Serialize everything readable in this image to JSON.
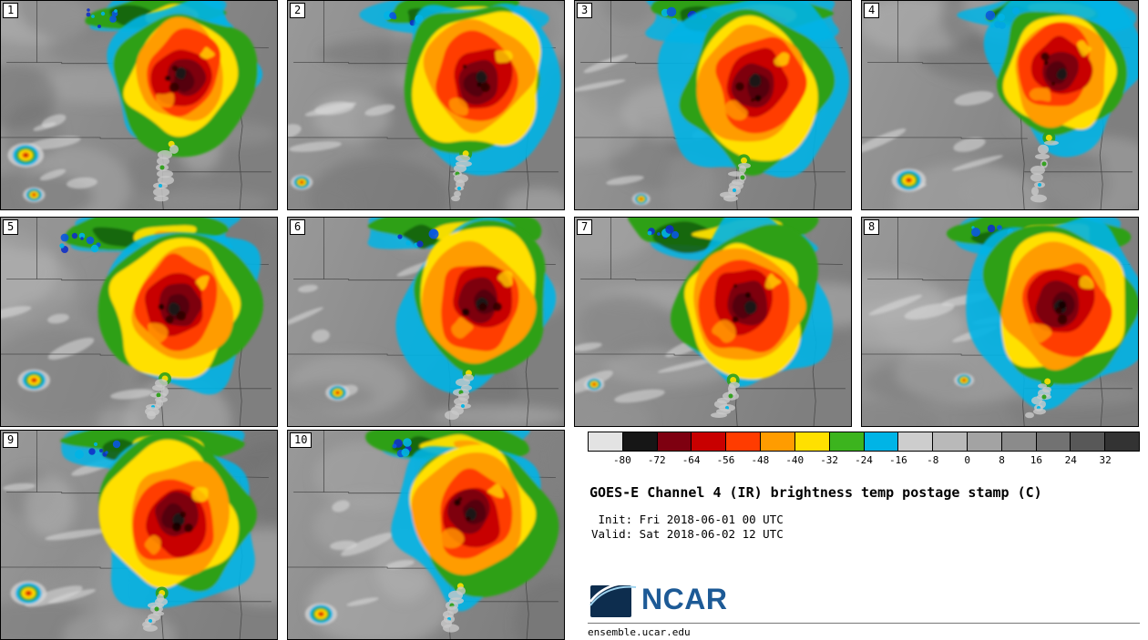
{
  "title": "GOES-E Channel 4 (IR) brightness temp postage stamp (C)",
  "init_line": " Init: Fri 2018-06-01 00 UTC",
  "valid_line": "Valid: Sat 2018-06-02 12 UTC",
  "branding": {
    "wordmark": "NCAR",
    "url": "ensemble.ucar.edu",
    "color": "#1d5a96",
    "icon_bg": "#0d2d4e",
    "icon_swoosh": "#9fd4f0"
  },
  "colorbar": {
    "ticks": [
      "-80",
      "-72",
      "-64",
      "-56",
      "-48",
      "-40",
      "-32",
      "-24",
      "-16",
      "-8",
      "0",
      "8",
      "16",
      "24",
      "32"
    ],
    "segments": [
      "#e3e3e3",
      "#161616",
      "#7e0010",
      "#c80000",
      "#ff3c00",
      "#ff9c00",
      "#ffe000",
      "#3cb41e",
      "#00b4e6",
      "#cdcdcd",
      "#b9b9b9",
      "#a3a3a3",
      "#8b8b8b",
      "#727272",
      "#585858",
      "#333333"
    ]
  },
  "panels": [
    {
      "label": "1",
      "storm": [
        0.66,
        0.36,
        0.235
      ],
      "band": [
        0.58,
        0.055,
        1.0
      ],
      "blue": [
        0.37,
        0.04,
        1.1
      ],
      "spots": [
        [
          0.09,
          0.74,
          0.9
        ],
        [
          0.12,
          0.93,
          0.55
        ]
      ],
      "seed": 3
    },
    {
      "label": "2",
      "storm": [
        0.69,
        0.38,
        0.255
      ],
      "band": [
        0.6,
        0.05,
        0.9
      ],
      "blue": [
        0.44,
        0.04,
        0.8
      ],
      "spots": [
        [
          0.05,
          0.87,
          0.55
        ]
      ],
      "seed": 8
    },
    {
      "label": "3",
      "storm": [
        0.66,
        0.4,
        0.265
      ],
      "band": [
        0.62,
        0.06,
        1.2
      ],
      "blue": [
        0.4,
        0.05,
        0.9
      ],
      "spots": [
        [
          0.24,
          0.95,
          0.45
        ]
      ],
      "seed": 14
    },
    {
      "label": "4",
      "storm": [
        0.72,
        0.33,
        0.235
      ],
      "band": [
        0.66,
        0.05,
        0.9
      ],
      "blue": [
        0.5,
        0.04,
        0.8
      ],
      "spots": [
        [
          0.17,
          0.86,
          0.85
        ]
      ],
      "seed": 21
    },
    {
      "label": "5",
      "storm": [
        0.64,
        0.42,
        0.255
      ],
      "band": [
        0.54,
        0.065,
        1.1
      ],
      "blue": [
        0.29,
        0.07,
        1.3
      ],
      "spots": [
        [
          0.12,
          0.78,
          0.8
        ]
      ],
      "seed": 27
    },
    {
      "label": "6",
      "storm": [
        0.7,
        0.4,
        0.25
      ],
      "band": [
        0.6,
        0.055,
        1.0
      ],
      "blue": [
        0.46,
        0.05,
        0.8
      ],
      "spots": [
        [
          0.18,
          0.84,
          0.6
        ]
      ],
      "seed": 33
    },
    {
      "label": "7",
      "storm": [
        0.62,
        0.42,
        0.26
      ],
      "band": [
        0.55,
        0.06,
        1.25
      ],
      "blue": [
        0.34,
        0.05,
        1.0
      ],
      "spots": [
        [
          0.07,
          0.8,
          0.5
        ]
      ],
      "seed": 40
    },
    {
      "label": "8",
      "storm": [
        0.72,
        0.42,
        0.265
      ],
      "band": [
        0.64,
        0.06,
        1.1
      ],
      "blue": [
        0.47,
        0.05,
        0.9
      ],
      "spots": [
        [
          0.37,
          0.78,
          0.5
        ]
      ],
      "seed": 46
    },
    {
      "label": "9",
      "storm": [
        0.63,
        0.42,
        0.26
      ],
      "band": [
        0.55,
        0.06,
        1.0
      ],
      "blue": [
        0.35,
        0.05,
        1.0
      ],
      "spots": [
        [
          0.1,
          0.78,
          0.9
        ]
      ],
      "seed": 52
    },
    {
      "label": "10",
      "storm": [
        0.67,
        0.4,
        0.25
      ],
      "band": [
        0.58,
        0.055,
        1.0
      ],
      "blue": [
        0.42,
        0.05,
        0.9
      ],
      "spots": [
        [
          0.12,
          0.88,
          0.8
        ]
      ],
      "seed": 59
    }
  ]
}
